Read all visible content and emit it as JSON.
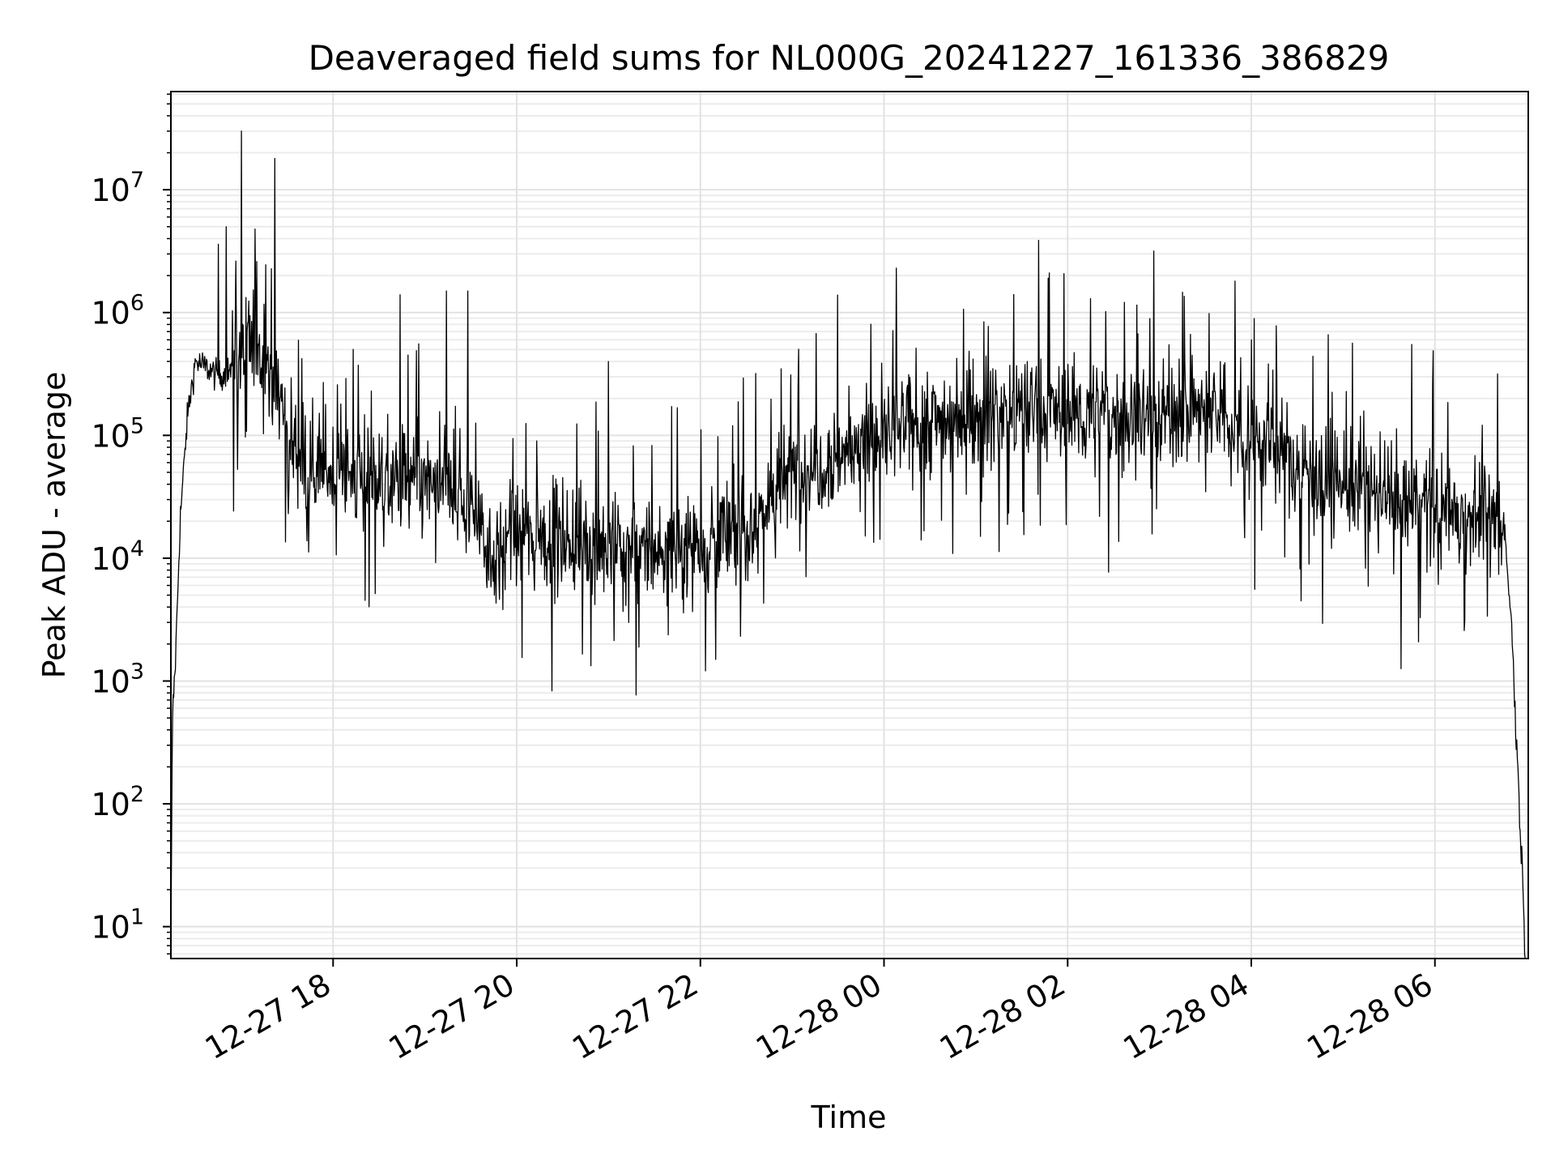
{
  "chart_data": {
    "type": "line",
    "title": "Deaveraged field sums for NL000G_20241227_161336_386829",
    "xlabel": "Time",
    "ylabel": "Peak ADU - average",
    "yscale": "log",
    "ylim": [
      5.5,
      63000000
    ],
    "xlim": [
      "2024-12-27 16:14",
      "2024-12-28 07:01"
    ],
    "grid": true,
    "legend": "none",
    "line_color": "#000000",
    "x_ticks": [
      {
        "label": "12-27 18",
        "value": "2024-12-27 18:00"
      },
      {
        "label": "12-27 20",
        "value": "2024-12-27 20:00"
      },
      {
        "label": "12-27 22",
        "value": "2024-12-27 22:00"
      },
      {
        "label": "12-28 00",
        "value": "2024-12-28 00:00"
      },
      {
        "label": "12-28 02",
        "value": "2024-12-28 02:00"
      },
      {
        "label": "12-28 04",
        "value": "2024-12-28 04:00"
      },
      {
        "label": "12-28 06",
        "value": "2024-12-28 06:00"
      }
    ],
    "y_ticks": [
      {
        "mantissa": "10",
        "exponent": "1",
        "value": 10
      },
      {
        "mantissa": "10",
        "exponent": "2",
        "value": 100
      },
      {
        "mantissa": "10",
        "exponent": "3",
        "value": 1000
      },
      {
        "mantissa": "10",
        "exponent": "4",
        "value": 10000
      },
      {
        "mantissa": "10",
        "exponent": "5",
        "value": 100000
      },
      {
        "mantissa": "10",
        "exponent": "6",
        "value": 1000000
      },
      {
        "mantissa": "10",
        "exponent": "7",
        "value": 10000000
      }
    ],
    "series": [
      {
        "x": [
          "2024-12-27 16:14",
          "2024-12-27 16:15",
          "2024-12-27 16:17",
          "2024-12-27 16:20",
          "2024-12-27 16:25",
          "2024-12-27 16:30",
          "2024-12-27 16:38",
          "2024-12-27 16:45",
          "2024-12-27 16:55",
          "2024-12-27 17:05",
          "2024-12-27 17:10",
          "2024-12-27 17:15",
          "2024-12-27 17:25",
          "2024-12-27 17:35",
          "2024-12-27 17:45",
          "2024-12-27 17:50",
          "2024-12-27 18:00",
          "2024-12-27 18:30",
          "2024-12-27 19:00",
          "2024-12-27 19:30",
          "2024-12-27 19:45",
          "2024-12-27 20:00",
          "2024-12-27 20:30",
          "2024-12-27 21:00",
          "2024-12-27 21:30",
          "2024-12-27 22:00",
          "2024-12-27 22:30",
          "2024-12-27 22:45",
          "2024-12-27 23:00",
          "2024-12-27 23:30",
          "2024-12-28 00:00",
          "2024-12-28 00:30",
          "2024-12-28 01:00",
          "2024-12-28 01:30",
          "2024-12-28 02:00",
          "2024-12-28 02:30",
          "2024-12-28 03:00",
          "2024-12-28 03:30",
          "2024-12-28 04:00",
          "2024-12-28 04:30",
          "2024-12-28 05:00",
          "2024-12-28 05:30",
          "2024-12-28 06:00",
          "2024-12-28 06:30",
          "2024-12-28 06:45",
          "2024-12-28 06:50",
          "2024-12-28 06:54",
          "2024-12-28 06:57",
          "2024-12-28 06:59"
        ],
        "y": [
          6,
          500,
          1500,
          20000,
          150000,
          400000,
          350000,
          300000,
          350000,
          500000,
          600000,
          450000,
          200000,
          80000,
          60000,
          55000,
          50000,
          45000,
          40000,
          30000,
          10000,
          15000,
          15000,
          12000,
          11000,
          14000,
          16000,
          30000,
          50000,
          70000,
          100000,
          130000,
          150000,
          160000,
          150000,
          140000,
          150000,
          160000,
          100000,
          60000,
          40000,
          30000,
          25000,
          22000,
          20000,
          3000,
          200,
          30,
          6
        ],
        "spikes": [
          {
            "x": "2024-12-27 17:00",
            "y": 30000000
          },
          {
            "x": "2024-12-27 17:22",
            "y": 18000000
          },
          {
            "x": "2024-12-27 16:50",
            "y": 5000000
          },
          {
            "x": "2024-12-27 16:45",
            "y": 3600000
          },
          {
            "x": "2024-12-27 17:10",
            "y": 2600000
          },
          {
            "x": "2024-12-28 00:08",
            "y": 2300000
          },
          {
            "x": "2024-12-27 19:14",
            "y": 1500000
          },
          {
            "x": "2024-12-27 19:28",
            "y": 1500000
          },
          {
            "x": "2024-12-28 02:15",
            "y": 1300000
          },
          {
            "x": "2024-12-28 04:00",
            "y": 600000
          },
          {
            "x": "2024-12-28 05:45",
            "y": 550000
          },
          {
            "x": "2024-12-27 21:00",
            "y": 400000
          }
        ]
      }
    ]
  }
}
